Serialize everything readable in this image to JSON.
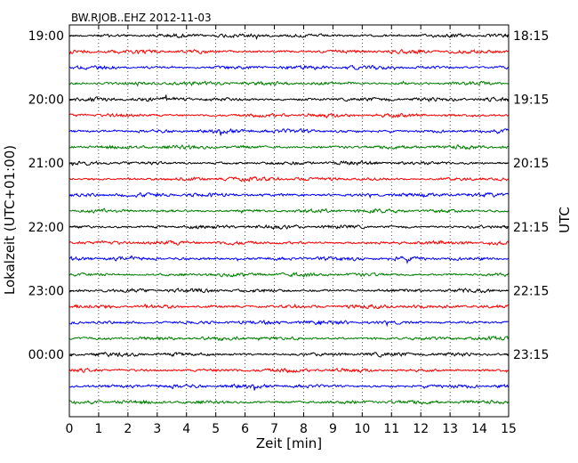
{
  "chart_data": {
    "type": "line",
    "title": "BW.RJOB..EHZ 2012-11-03",
    "xlabel": "Zeit  [min]",
    "ylabel_left": "Lokalzeit (UTC+01:00)",
    "ylabel_right": "UTC",
    "xlim": [
      0,
      15
    ],
    "x_ticks": [
      "0",
      "1",
      "2",
      "3",
      "4",
      "5",
      "6",
      "7",
      "8",
      "9",
      "10",
      "11",
      "12",
      "13",
      "14",
      "15"
    ],
    "grid": "vertical dotted",
    "trace_interval_minutes": 15,
    "trace_count": 24,
    "trace_colors": [
      "#000000",
      "#ff0000",
      "#0000ff",
      "#008000"
    ],
    "left_tick_labels": [
      {
        "trace": 0,
        "label": "19:00"
      },
      {
        "trace": 4,
        "label": "20:00"
      },
      {
        "trace": 8,
        "label": "21:00"
      },
      {
        "trace": 12,
        "label": "22:00"
      },
      {
        "trace": 16,
        "label": "23:00"
      },
      {
        "trace": 20,
        "label": "00:00"
      }
    ],
    "right_tick_labels": [
      {
        "trace": 0,
        "label": "18:15"
      },
      {
        "trace": 4,
        "label": "19:15"
      },
      {
        "trace": 8,
        "label": "20:15"
      },
      {
        "trace": 12,
        "label": "21:15"
      },
      {
        "trace": 16,
        "label": "22:15"
      },
      {
        "trace": 20,
        "label": "23:15"
      }
    ]
  }
}
